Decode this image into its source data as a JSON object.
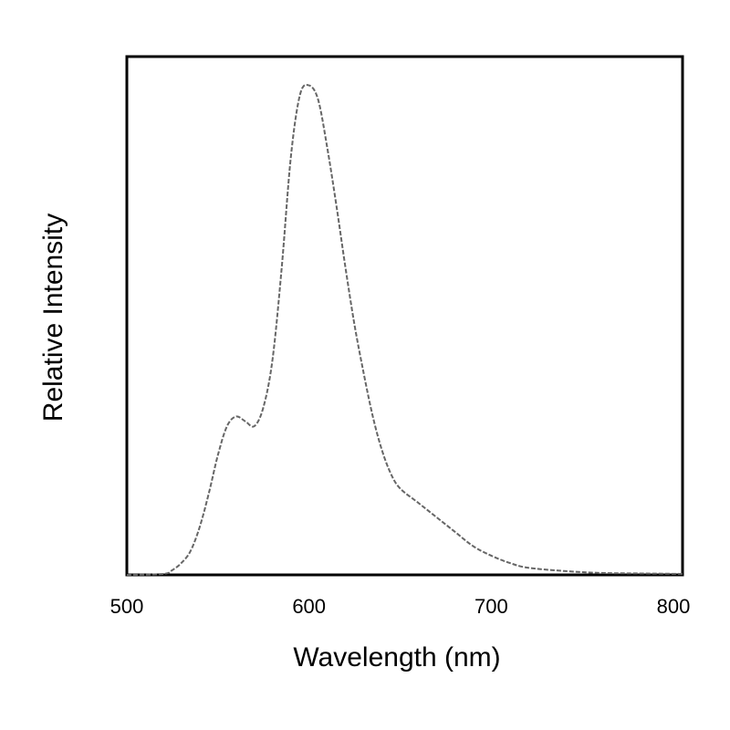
{
  "chart_data": {
    "type": "line",
    "title": "",
    "xlabel": "Wavelength (nm)",
    "ylabel": "Relative Intensity",
    "xlim": [
      500,
      805
    ],
    "ylim": [
      0,
      1.08
    ],
    "xticks": [
      500,
      600,
      700,
      800
    ],
    "grid": false,
    "legend": "none",
    "colors": {
      "line": "#666666",
      "frame": "#000000"
    },
    "series": [
      {
        "x": [
          500,
          520,
          525,
          530,
          535,
          540,
          545,
          550,
          555,
          560,
          565,
          570,
          575,
          580,
          585,
          590,
          595,
          600,
          605,
          610,
          615,
          620,
          625,
          630,
          635,
          640,
          645,
          650,
          660,
          670,
          680,
          690,
          700,
          710,
          720,
          740,
          760,
          780,
          805
        ],
        "values": [
          0,
          0.002,
          0.01,
          0.025,
          0.05,
          0.1,
          0.17,
          0.25,
          0.31,
          0.33,
          0.32,
          0.31,
          0.35,
          0.45,
          0.64,
          0.87,
          1.0,
          1.02,
          0.99,
          0.89,
          0.77,
          0.64,
          0.52,
          0.42,
          0.33,
          0.26,
          0.21,
          0.18,
          0.15,
          0.12,
          0.09,
          0.06,
          0.04,
          0.025,
          0.015,
          0.008,
          0.004,
          0.003,
          0.002
        ]
      }
    ]
  }
}
